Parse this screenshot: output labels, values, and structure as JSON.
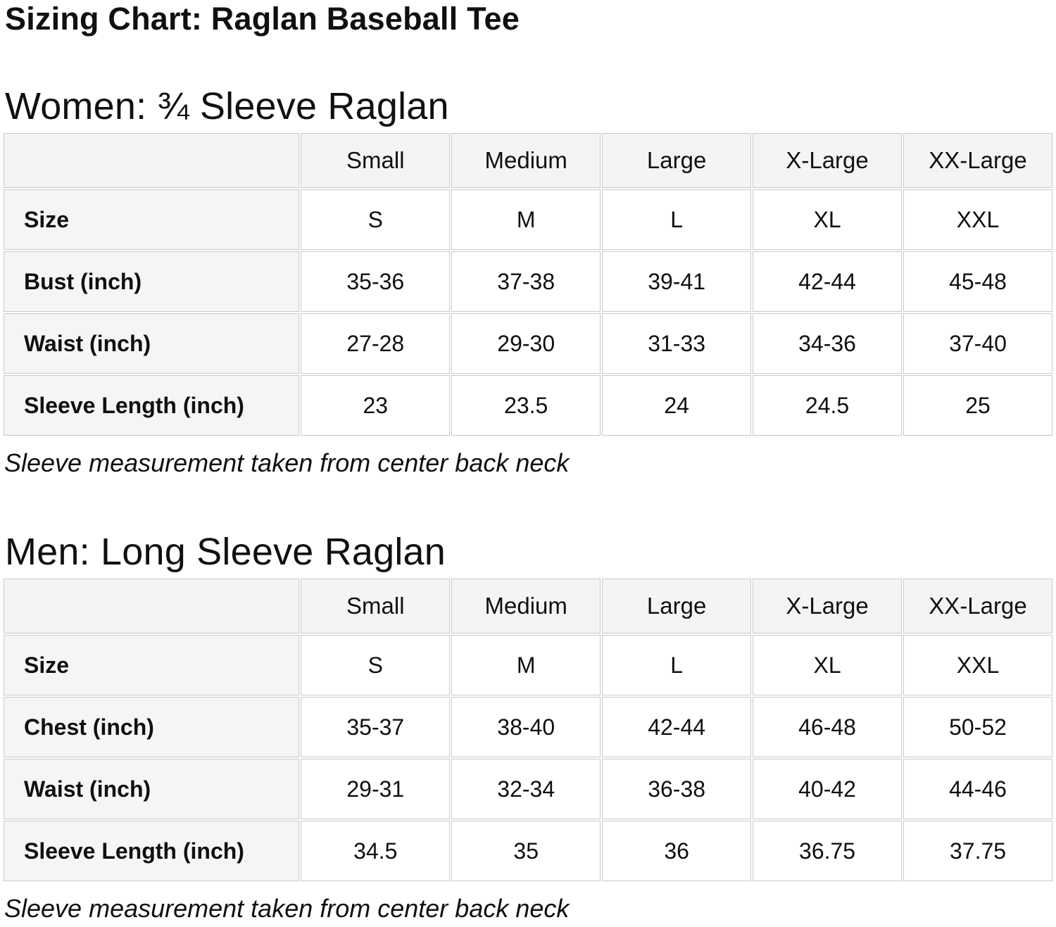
{
  "page": {
    "title": "Sizing Chart: Raglan Baseball Tee"
  },
  "colors": {
    "text": "#0f1111",
    "table_header_bg": "#f4f4f5",
    "table_label_bg": "#f5f5f6",
    "table_border": "#c9c9c9",
    "cell_bg": "#ffffff"
  },
  "sections": [
    {
      "heading": "Women: ¾ Sleeve Raglan",
      "note": "Sleeve measurement taken from center back neck",
      "table": {
        "columns": [
          "",
          "Small",
          "Medium",
          "Large",
          "X-Large",
          "XX-Large"
        ],
        "rows": [
          {
            "label": "Size",
            "values": [
              "S",
              "M",
              "L",
              "XL",
              "XXL"
            ]
          },
          {
            "label": "Bust (inch)",
            "values": [
              "35-36",
              "37-38",
              "39-41",
              "42-44",
              "45-48"
            ]
          },
          {
            "label": "Waist (inch)",
            "values": [
              "27-28",
              "29-30",
              "31-33",
              "34-36",
              "37-40"
            ]
          },
          {
            "label": "Sleeve Length (inch)",
            "values": [
              "23",
              "23.5",
              "24",
              "24.5",
              "25"
            ]
          }
        ]
      }
    },
    {
      "heading": "Men: Long Sleeve Raglan",
      "note": "Sleeve measurement taken from center back neck",
      "table": {
        "columns": [
          "",
          "Small",
          "Medium",
          "Large",
          "X-Large",
          "XX-Large"
        ],
        "rows": [
          {
            "label": "Size",
            "values": [
              "S",
              "M",
              "L",
              "XL",
              "XXL"
            ]
          },
          {
            "label": "Chest (inch)",
            "values": [
              "35-37",
              "38-40",
              "42-44",
              "46-48",
              "50-52"
            ]
          },
          {
            "label": "Waist (inch)",
            "values": [
              "29-31",
              "32-34",
              "36-38",
              "40-42",
              "44-46"
            ]
          },
          {
            "label": "Sleeve Length (inch)",
            "values": [
              "34.5",
              "35",
              "36",
              "36.75",
              "37.75"
            ]
          }
        ]
      }
    }
  ]
}
